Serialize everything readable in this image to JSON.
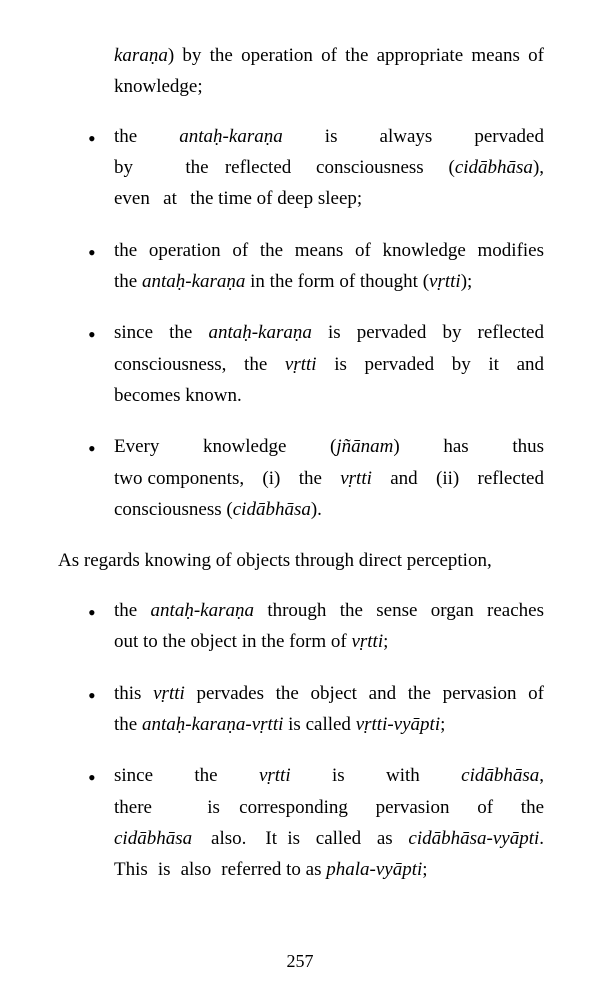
{
  "continuation": {
    "term": "karaṇa",
    "rest": ") by the operation of the appropriate means of knowledge;"
  },
  "bullets1": [
    {
      "pre": "the ",
      "term1": "antaḥ-karaṇa",
      "mid1": " is always pervaded by the reflected consciousness (",
      "term2": "cidābhāsa",
      "mid2": "), even at the time of deep sleep;"
    },
    {
      "pre": "the operation of the means of knowledge modifies the ",
      "term1": "antaḥ-karaṇa",
      "mid1": " in the form of thought (",
      "term2": "vṛtti",
      "mid2": ");"
    },
    {
      "pre": "since the ",
      "term1": "antaḥ-karaṇa",
      "mid1": " is pervaded by reflected consciousness, the ",
      "term2": "vṛtti",
      "mid2": " is pervaded by it and becomes known."
    },
    {
      "pre": "Every knowledge (",
      "term1": "jñānam",
      "mid1": ") has thus two components, (i) the ",
      "term2": "vṛtti",
      "mid2": " and (ii) reflected consciousness (",
      "term3": "cidābhāsa",
      "end": ")."
    }
  ],
  "midPara": "As regards knowing of objects through direct perception,",
  "bullets2": [
    {
      "pre": "the ",
      "term1": "antaḥ-karaṇa",
      "mid1": " through the sense organ reaches out to the object in the form of ",
      "term2": "vṛtti",
      "end": ";"
    },
    {
      "pre": "this ",
      "term1": "vṛtti",
      "mid1": " pervades the object and the pervasion of the ",
      "term2": "antaḥ-karaṇa-vṛtti",
      "mid2": " is called ",
      "term3": "vṛtti-vyāpti",
      "end": ";"
    },
    {
      "pre": "since the ",
      "term1": "vṛtti",
      "mid1": " is with ",
      "term2": "cidābhāsa",
      "mid2": ", there is corresponding pervasion of the ",
      "term3": "cidābhāsa",
      "mid3": " also. It is called as ",
      "term4": "cidābhāsa-vyāpti",
      "mid4": ". This is also referred to as ",
      "term5": "phala-vyāpti",
      "end": ";"
    }
  ],
  "pageNumber": "257"
}
